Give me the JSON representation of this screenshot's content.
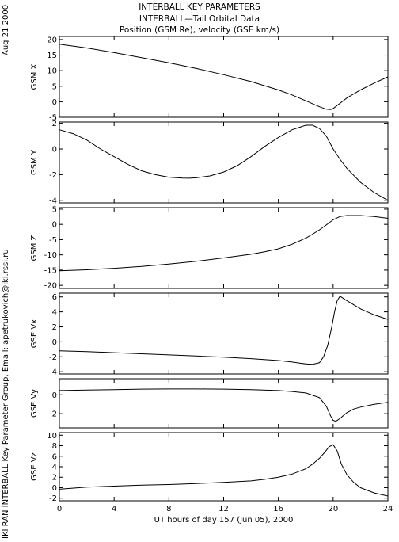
{
  "header": {
    "line1": "INTERBALL KEY PARAMETERS",
    "line2": "INTERBALL—Tail Orbital Data",
    "line3": "Position (GSM Re), velocity (GSE km/s)"
  },
  "side": {
    "date": "Aug 21 2000",
    "credit": "IKI RAN INTERBALL Key Parameter Group, Email: apetrukovich@iki.rssi.ru"
  },
  "chart_data": {
    "type": "line",
    "xlabel": "UT hours of day 157 (Jun 05), 2000",
    "xlim": [
      0,
      24
    ],
    "xticks": [
      0,
      4,
      8,
      12,
      16,
      20,
      24
    ],
    "panels": [
      {
        "ylabel": "GSM X",
        "ylim": [
          -5,
          21
        ],
        "yticks": [
          -5,
          0,
          5,
          10,
          15,
          20
        ],
        "x": [
          0,
          2,
          4,
          6,
          8,
          10,
          12,
          14,
          16,
          17,
          18,
          19,
          19.5,
          19.8,
          20,
          20.5,
          21,
          22,
          23,
          24
        ],
        "y": [
          18.5,
          17.3,
          15.8,
          14.2,
          12.5,
          10.7,
          8.7,
          6.5,
          3.8,
          2.2,
          0.3,
          -1.6,
          -2.4,
          -2.5,
          -2.2,
          -0.5,
          1.2,
          3.8,
          6.0,
          8.0
        ]
      },
      {
        "ylabel": "GSM Y",
        "ylim": [
          -4.2,
          2.1
        ],
        "yticks": [
          -4,
          -2,
          0,
          2
        ],
        "x": [
          0,
          1,
          2,
          3,
          4,
          5,
          6,
          7,
          8,
          9,
          9.5,
          10,
          11,
          12,
          13,
          14,
          15,
          16,
          17,
          18,
          18.5,
          19,
          19.5,
          20,
          20.5,
          21,
          22,
          23,
          24
        ],
        "y": [
          1.5,
          1.2,
          0.7,
          0.0,
          -0.6,
          -1.2,
          -1.7,
          -2.0,
          -2.2,
          -2.27,
          -2.28,
          -2.25,
          -2.1,
          -1.8,
          -1.3,
          -0.6,
          0.2,
          0.9,
          1.5,
          1.85,
          1.85,
          1.6,
          1.0,
          0.0,
          -0.8,
          -1.5,
          -2.6,
          -3.4,
          -4.0
        ]
      },
      {
        "ylabel": "GSM Z",
        "ylim": [
          -21,
          5.5
        ],
        "yticks": [
          -20,
          -15,
          -10,
          -5,
          0,
          5
        ],
        "x": [
          0,
          2,
          4,
          6,
          8,
          10,
          12,
          14,
          15,
          16,
          17,
          18,
          18.5,
          19,
          19.5,
          20,
          20.5,
          21,
          22,
          23,
          24
        ],
        "y": [
          -15.2,
          -14.9,
          -14.4,
          -13.8,
          -13.0,
          -12.1,
          -11.0,
          -9.8,
          -9.0,
          -8.0,
          -6.5,
          -4.5,
          -3.2,
          -1.8,
          -0.2,
          1.5,
          2.6,
          2.9,
          2.9,
          2.6,
          2.0
        ]
      },
      {
        "ylabel": "GSE Vx",
        "ylim": [
          -4.3,
          6.5
        ],
        "yticks": [
          -4,
          -2,
          0,
          2,
          4,
          6
        ],
        "x": [
          0,
          2,
          4,
          6,
          8,
          10,
          12,
          14,
          16,
          17,
          18,
          18.5,
          19,
          19.3,
          19.6,
          19.9,
          20.1,
          20.3,
          20.5,
          21,
          22,
          23,
          24
        ],
        "y": [
          -1.2,
          -1.3,
          -1.45,
          -1.6,
          -1.75,
          -1.9,
          -2.05,
          -2.25,
          -2.5,
          -2.7,
          -2.95,
          -3.0,
          -2.8,
          -2.0,
          -0.5,
          2.0,
          4.0,
          5.5,
          6.1,
          5.5,
          4.4,
          3.6,
          3.0
        ]
      },
      {
        "ylabel": "GSE Vy",
        "ylim": [
          -3.5,
          1.7
        ],
        "yticks": [
          -2,
          0
        ],
        "x": [
          0,
          2,
          4,
          6,
          8,
          10,
          12,
          14,
          16,
          17,
          18,
          19,
          19.5,
          19.8,
          20,
          20.2,
          20.5,
          21,
          21.5,
          22,
          23,
          24
        ],
        "y": [
          0.45,
          0.5,
          0.55,
          0.6,
          0.62,
          0.62,
          0.6,
          0.55,
          0.45,
          0.35,
          0.2,
          -0.3,
          -1.2,
          -2.2,
          -2.7,
          -2.8,
          -2.5,
          -1.9,
          -1.5,
          -1.3,
          -1.0,
          -0.8
        ]
      },
      {
        "ylabel": "GSE Vz",
        "ylim": [
          -2.5,
          10.5
        ],
        "yticks": [
          -2,
          0,
          2,
          4,
          6,
          8,
          10
        ],
        "x": [
          0,
          2,
          4,
          6,
          8,
          10,
          12,
          14,
          15,
          16,
          17,
          18,
          18.5,
          19,
          19.4,
          19.7,
          20,
          20.3,
          20.6,
          21,
          21.5,
          22,
          23,
          24
        ],
        "y": [
          -0.3,
          0.1,
          0.3,
          0.5,
          0.6,
          0.8,
          1.0,
          1.3,
          1.6,
          2.0,
          2.6,
          3.6,
          4.5,
          5.6,
          6.8,
          7.8,
          8.2,
          7.0,
          4.5,
          2.5,
          1.0,
          0.0,
          -1.0,
          -1.6
        ]
      }
    ]
  }
}
